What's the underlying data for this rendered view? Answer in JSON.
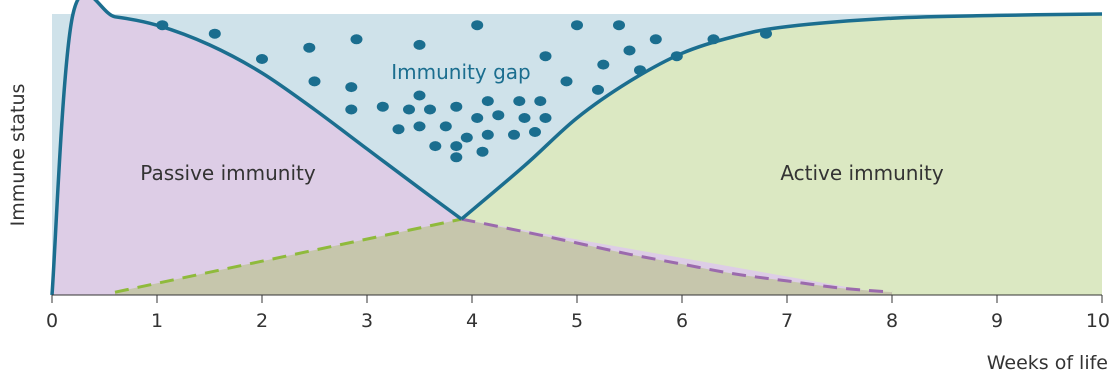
{
  "chart_data": {
    "type": "area",
    "xlabel": "Weeks of life",
    "ylabel": "Immune status",
    "xlim": [
      0,
      10
    ],
    "ylim": [
      0,
      1
    ],
    "x_ticks": [
      "0",
      "1",
      "2",
      "3",
      "4",
      "5",
      "6",
      "7",
      "8",
      "9",
      "10"
    ],
    "annotations": {
      "passive": "Passive immunity",
      "active": "Active immunity",
      "gap": "Immunity gap"
    },
    "series": [
      {
        "key": "passive",
        "points": [
          [
            0,
            0
          ],
          [
            0.2,
            1.0
          ],
          [
            0.6,
            0.99
          ],
          [
            1.0,
            0.96
          ],
          [
            1.5,
            0.89
          ],
          [
            2.0,
            0.79
          ],
          [
            2.5,
            0.66
          ],
          [
            3.0,
            0.52
          ],
          [
            3.5,
            0.38
          ],
          [
            3.9,
            0.27
          ]
        ]
      },
      {
        "key": "active",
        "points": [
          [
            3.9,
            0.27
          ],
          [
            4.5,
            0.46
          ],
          [
            5.0,
            0.63
          ],
          [
            5.5,
            0.76
          ],
          [
            6.0,
            0.86
          ],
          [
            6.5,
            0.92
          ],
          [
            7.0,
            0.955
          ],
          [
            8.0,
            0.985
          ],
          [
            9.0,
            0.995
          ],
          [
            10.0,
            1.0
          ]
        ]
      },
      {
        "key": "passive_dashed",
        "points": [
          [
            0.6,
            0.01
          ],
          [
            3.9,
            0.27
          ]
        ]
      },
      {
        "key": "active_dashed",
        "points": [
          [
            3.9,
            0.27
          ],
          [
            4.5,
            0.225
          ],
          [
            5.0,
            0.185
          ],
          [
            5.5,
            0.145
          ],
          [
            6.0,
            0.11
          ],
          [
            6.5,
            0.075
          ],
          [
            7.0,
            0.05
          ],
          [
            7.5,
            0.025
          ],
          [
            8.0,
            0.01
          ]
        ]
      }
    ],
    "pathogen_dots": [
      [
        1.05,
        0.96
      ],
      [
        1.55,
        0.93
      ],
      [
        2.0,
        0.84
      ],
      [
        2.45,
        0.88
      ],
      [
        2.9,
        0.91
      ],
      [
        3.5,
        0.89
      ],
      [
        4.05,
        0.96
      ],
      [
        5.0,
        0.96
      ],
      [
        5.4,
        0.96
      ],
      [
        6.8,
        0.93
      ],
      [
        6.3,
        0.91
      ],
      [
        5.75,
        0.91
      ],
      [
        5.95,
        0.85
      ],
      [
        5.5,
        0.87
      ],
      [
        4.7,
        0.85
      ],
      [
        5.25,
        0.82
      ],
      [
        5.6,
        0.8
      ],
      [
        4.9,
        0.76
      ],
      [
        5.2,
        0.73
      ],
      [
        2.5,
        0.76
      ],
      [
        2.85,
        0.74
      ],
      [
        3.5,
        0.71
      ],
      [
        4.15,
        0.69
      ],
      [
        4.45,
        0.69
      ],
      [
        4.65,
        0.69
      ],
      [
        2.85,
        0.66
      ],
      [
        3.15,
        0.67
      ],
      [
        3.4,
        0.66
      ],
      [
        3.6,
        0.66
      ],
      [
        3.85,
        0.67
      ],
      [
        4.05,
        0.63
      ],
      [
        4.25,
        0.64
      ],
      [
        4.5,
        0.63
      ],
      [
        4.7,
        0.63
      ],
      [
        3.3,
        0.59
      ],
      [
        3.5,
        0.6
      ],
      [
        3.75,
        0.6
      ],
      [
        3.95,
        0.56
      ],
      [
        4.15,
        0.57
      ],
      [
        4.4,
        0.57
      ],
      [
        4.6,
        0.58
      ],
      [
        3.65,
        0.53
      ],
      [
        3.85,
        0.53
      ],
      [
        4.1,
        0.51
      ],
      [
        3.85,
        0.49
      ]
    ],
    "colors": {
      "background": "#cfe2ea",
      "passive_fill": "#ddcde6",
      "active_fill": "#dbe8c2",
      "overlap_fill": "#c6c6ac",
      "curve": "#1b6e8f",
      "dots": "#1b6e8f",
      "passive_dashed": "#8fba3c",
      "active_dashed": "#9b6aad",
      "axis": "#333333"
    }
  }
}
